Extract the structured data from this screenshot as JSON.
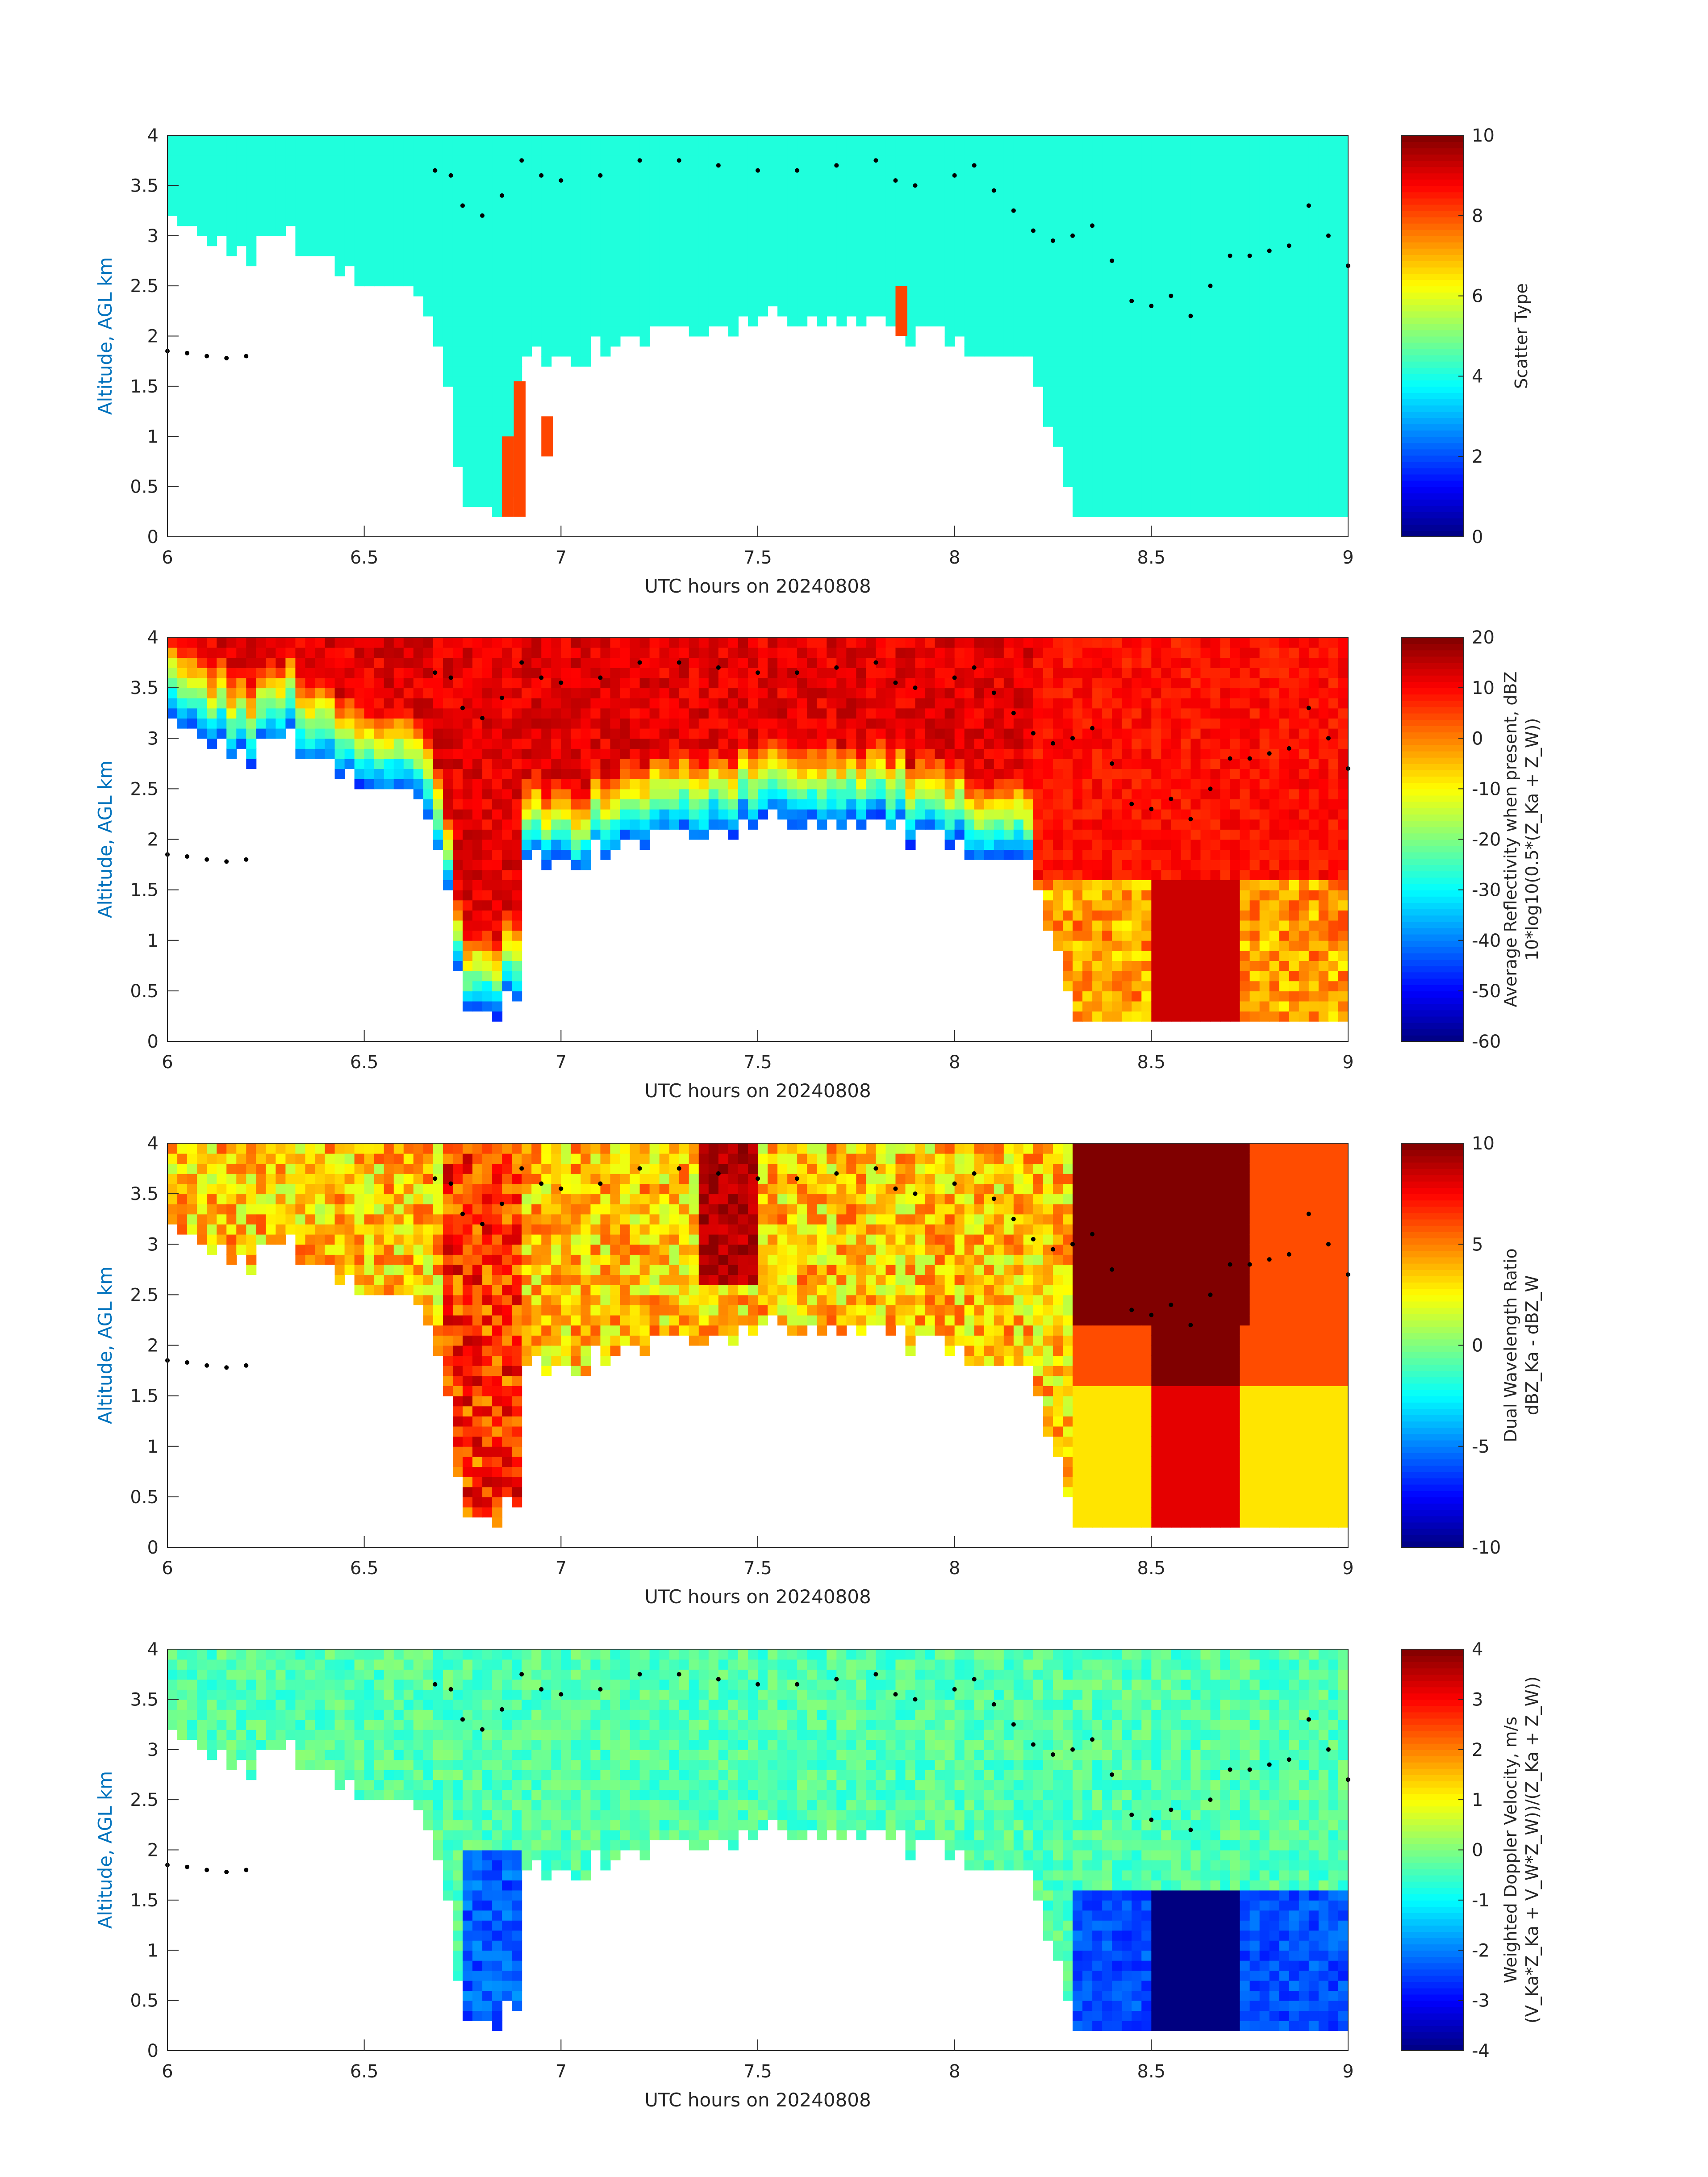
{
  "chart_data": [
    {
      "type": "heatmap",
      "title": "",
      "xlabel": "UTC hours on 20240808",
      "ylabel": "Altitude, AGL km",
      "xlim": [
        6,
        9
      ],
      "ylim": [
        0,
        4
      ],
      "xticks": [
        "6",
        "6.5",
        "7",
        "7.5",
        "8",
        "8.5",
        "9"
      ],
      "yticks": [
        "0",
        "0.5",
        "1",
        "1.5",
        "2",
        "2.5",
        "3",
        "3.5",
        "4"
      ],
      "colorbar": {
        "label": [
          "Scatter Type"
        ],
        "clim": [
          0,
          10
        ],
        "ticks": [
          "0",
          "2",
          "4",
          "6",
          "8",
          "10"
        ]
      },
      "variable": "scatter"
    },
    {
      "type": "heatmap",
      "xlabel": "UTC hours on 20240808",
      "ylabel": "Altitude, AGL km",
      "xlim": [
        6,
        9
      ],
      "ylim": [
        0,
        4
      ],
      "xticks": [
        "6",
        "6.5",
        "7",
        "7.5",
        "8",
        "8.5",
        "9"
      ],
      "yticks": [
        "0",
        "0.5",
        "1",
        "1.5",
        "2",
        "2.5",
        "3",
        "3.5",
        "4"
      ],
      "colorbar": {
        "label": [
          "Average Reflectivity when present, dBZ",
          "10*log10(0.5*(Z_Ka + Z_W))"
        ],
        "clim": [
          -60,
          20
        ],
        "ticks": [
          "-60",
          "-50",
          "-40",
          "-30",
          "-20",
          "-10",
          "0",
          "10",
          "20"
        ]
      },
      "variable": "reflectivity"
    },
    {
      "type": "heatmap",
      "xlabel": "UTC hours on 20240808",
      "ylabel": "Altitude, AGL km",
      "xlim": [
        6,
        9
      ],
      "ylim": [
        0,
        4
      ],
      "xticks": [
        "6",
        "6.5",
        "7",
        "7.5",
        "8",
        "8.5",
        "9"
      ],
      "yticks": [
        "0",
        "0.5",
        "1",
        "1.5",
        "2",
        "2.5",
        "3",
        "3.5",
        "4"
      ],
      "colorbar": {
        "label": [
          "Dual Wavelength Ratio",
          "dBZ_Ka - dBZ_W"
        ],
        "clim": [
          -10,
          10
        ],
        "ticks": [
          "-10",
          "-5",
          "0",
          "5",
          "10"
        ]
      },
      "variable": "dwr"
    },
    {
      "type": "heatmap",
      "xlabel": "UTC hours on 20240808",
      "ylabel": "Altitude, AGL km",
      "xlim": [
        6,
        9
      ],
      "ylim": [
        0,
        4
      ],
      "xticks": [
        "6",
        "6.5",
        "7",
        "7.5",
        "8",
        "8.5",
        "9"
      ],
      "yticks": [
        "0",
        "0.5",
        "1",
        "1.5",
        "2",
        "2.5",
        "3",
        "3.5",
        "4"
      ],
      "colorbar": {
        "label": [
          "Weighted Doppler Velocity, m/s",
          "(V_Ka*Z_Ka + V_W*Z_W))/(Z_Ka + Z_W))"
        ],
        "clim": [
          -4,
          4
        ],
        "ticks": [
          "-4",
          "-3",
          "-2",
          "-1",
          "0",
          "1",
          "2",
          "3",
          "4"
        ]
      },
      "variable": "velocity"
    }
  ],
  "cloud_base_profile": {
    "t": [
      6.0,
      6.1,
      6.2,
      6.3,
      6.4,
      6.5,
      6.6,
      6.65,
      6.7,
      6.75,
      6.9,
      7.0,
      7.2,
      7.4,
      7.6,
      7.8,
      7.9,
      8.0,
      8.1,
      8.2,
      8.25,
      8.3,
      9.0
    ],
    "base_km": [
      3.2,
      3.0,
      2.8,
      3.0,
      2.8,
      2.6,
      2.5,
      2.3,
      1.9,
      0.2,
      1.8,
      1.7,
      2.0,
      2.1,
      2.2,
      2.2,
      2.0,
      1.9,
      1.9,
      1.7,
      1.0,
      0.2,
      0.2
    ]
  },
  "black_dots": {
    "t": [
      6.0,
      6.05,
      6.1,
      6.15,
      6.2,
      6.68,
      6.72,
      6.75,
      6.8,
      6.85,
      6.9,
      6.95,
      7.0,
      7.1,
      7.2,
      7.3,
      7.4,
      7.5,
      7.6,
      7.7,
      7.8,
      7.85,
      7.9,
      8.0,
      8.05,
      8.1,
      8.15,
      8.2,
      8.25,
      8.3,
      8.35,
      8.4,
      8.45,
      8.5,
      8.55,
      8.6,
      8.65,
      8.7,
      8.75,
      8.8,
      8.85,
      8.9,
      8.95,
      9.0
    ],
    "alt_km": [
      1.85,
      1.83,
      1.8,
      1.78,
      1.8,
      3.65,
      3.6,
      3.3,
      3.2,
      3.4,
      3.75,
      3.6,
      3.55,
      3.6,
      3.75,
      3.75,
      3.7,
      3.65,
      3.65,
      3.7,
      3.75,
      3.55,
      3.5,
      3.6,
      3.7,
      3.45,
      3.25,
      3.05,
      2.95,
      3.0,
      3.1,
      2.75,
      2.35,
      2.3,
      2.4,
      2.2,
      2.5,
      2.8,
      2.8,
      2.85,
      2.9,
      3.3,
      3.0,
      2.7
    ]
  }
}
